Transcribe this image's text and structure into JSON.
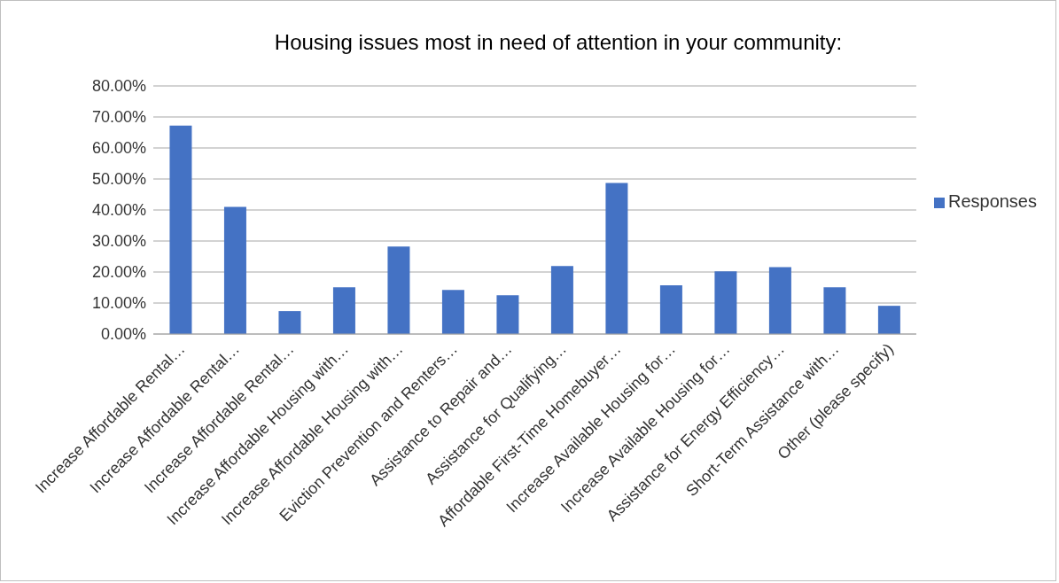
{
  "chart_data": {
    "type": "bar",
    "title": "Housing issues most in need of attention in your community:",
    "categories": [
      "Increase Affordable Rental…",
      "Increase Affordable Rental…",
      "Increase Affordable Rental…",
      "Increase Affordable Housing with…",
      "Increase Affordable Housing with…",
      "Eviction Prevention and Renters…",
      "Assistance to Repair and…",
      "Assistance for Qualifying…",
      "Affordable First-Time Homebuyer…",
      "Increase Available Housing for…",
      "Increase Available Housing for…",
      "Assistance for Energy Efficiency…",
      "Short-Term Assistance with…",
      "Other (please specify)"
    ],
    "series": [
      {
        "name": "Responses",
        "color": "#4472c4",
        "values": [
          67.2,
          41.0,
          7.4,
          15.1,
          28.2,
          14.2,
          12.5,
          21.9,
          48.7,
          15.7,
          20.2,
          21.6,
          15.1,
          9.1
        ]
      }
    ],
    "ylim": [
      0,
      80
    ],
    "yticks": [
      {
        "value": 0,
        "label": "0.00%"
      },
      {
        "value": 10,
        "label": "10.00%"
      },
      {
        "value": 20,
        "label": "20.00%"
      },
      {
        "value": 30,
        "label": "30.00%"
      },
      {
        "value": 40,
        "label": "40.00%"
      },
      {
        "value": 50,
        "label": "50.00%"
      },
      {
        "value": 60,
        "label": "60.00%"
      },
      {
        "value": 70,
        "label": "70.00%"
      },
      {
        "value": 80,
        "label": "80.00%"
      }
    ],
    "grid": "y",
    "legend": "right"
  }
}
